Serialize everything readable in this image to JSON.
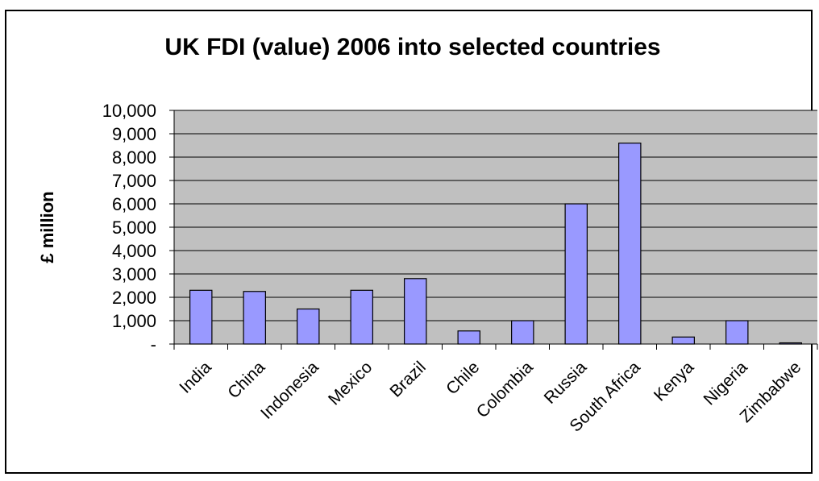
{
  "chart_data": {
    "type": "bar",
    "title": "UK FDI (value) 2006 into selected countries",
    "xlabel": "",
    "ylabel": "£ million",
    "ylim": [
      0,
      10000
    ],
    "y_ticks": [
      "-",
      "1,000",
      "2,000",
      "3,000",
      "4,000",
      "5,000",
      "6,000",
      "7,000",
      "8,000",
      "9,000",
      "10,000"
    ],
    "grid": true,
    "legend": "none",
    "categories": [
      "India",
      "China",
      "Indonesia",
      "Mexico",
      "Brazil",
      "Chile",
      "Colombia",
      "Russia",
      "South Africa",
      "Kenya",
      "Nigeria",
      "Zimbabwe"
    ],
    "values": [
      2300,
      2250,
      1500,
      2300,
      2800,
      560,
      1000,
      6000,
      8600,
      300,
      1000,
      50
    ],
    "colors": {
      "plot_background": "#c0c0c0",
      "bar_fill": "#9999ff",
      "bar_stroke": "#000000",
      "gridline": "#000000"
    }
  }
}
